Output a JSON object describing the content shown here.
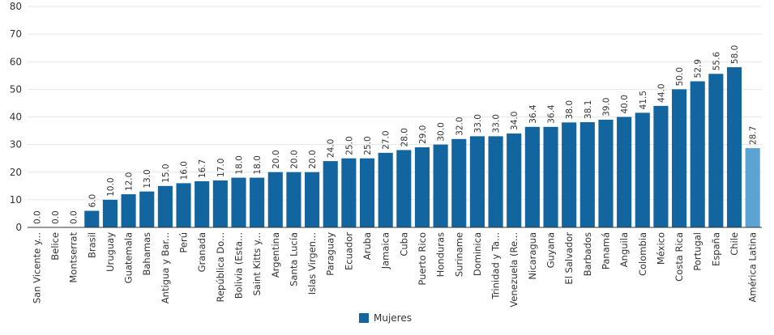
{
  "chart_data": {
    "type": "bar",
    "title": "",
    "xlabel": "",
    "ylabel": "",
    "ylim": [
      0,
      80
    ],
    "yticks": [
      0,
      10,
      20,
      30,
      40,
      50,
      60,
      70,
      80
    ],
    "grid": true,
    "legend_position": "bottom-center",
    "categories": [
      "San Vicente y...",
      "Belice",
      "Montserrat",
      "Brasil",
      "Uruguay",
      "Guatemala",
      "Bahamas",
      "Antigua y Bar...",
      "Perú",
      "Granada",
      "República Do...",
      "Bolivia (Esta...",
      "Saint Kitts y...",
      "Argentina",
      "Santa Lucía",
      "Islas Virgen...",
      "Paraguay",
      "Ecuador",
      "Aruba",
      "Jamaica",
      "Cuba",
      "Puerto Rico",
      "Honduras",
      "Suriname",
      "Dominica",
      "Trinidad y Ta...",
      "Venezuela (Re...",
      "Nicaragua",
      "Guyana",
      "El Salvador",
      "Barbados",
      "Panamá",
      "Anguila",
      "Colombia",
      "México",
      "Costa Rica",
      "Portugal",
      "España",
      "Chile",
      "América Latina"
    ],
    "series": [
      {
        "name": "Mujeres",
        "color": "#12659e",
        "highlight_color": "#5ba3d3",
        "highlight_category": "América Latina",
        "values": [
          0.0,
          0.0,
          0.0,
          6.0,
          10.0,
          12.0,
          13.0,
          15.0,
          16.0,
          16.7,
          17.0,
          18.0,
          18.0,
          20.0,
          20.0,
          20.0,
          24.0,
          25.0,
          25.0,
          27.0,
          28.0,
          29.0,
          30.0,
          32.0,
          33.0,
          33.0,
          34.0,
          36.4,
          36.4,
          38.0,
          38.1,
          39.0,
          40.0,
          41.5,
          44.0,
          50.0,
          52.9,
          55.6,
          58.0,
          28.7
        ],
        "labels": [
          "0.0",
          "0.0",
          "0.0",
          "6.0",
          "10.0",
          "12.0",
          "13.0",
          "15.0",
          "16.0",
          "16.7",
          "17.0",
          "18.0",
          "18.0",
          "20.0",
          "20.0",
          "20.0",
          "24.0",
          "25.0",
          "25.0",
          "27.0",
          "28.0",
          "29.0",
          "30.0",
          "32.0",
          "33.0",
          "33.0",
          "34.0",
          "36.4",
          "36.4",
          "38.0",
          "38.1",
          "39.0",
          "40.0",
          "41.5",
          "44.0",
          "50.0",
          "52.9",
          "55.6",
          "58.0",
          "28.7"
        ]
      }
    ]
  }
}
